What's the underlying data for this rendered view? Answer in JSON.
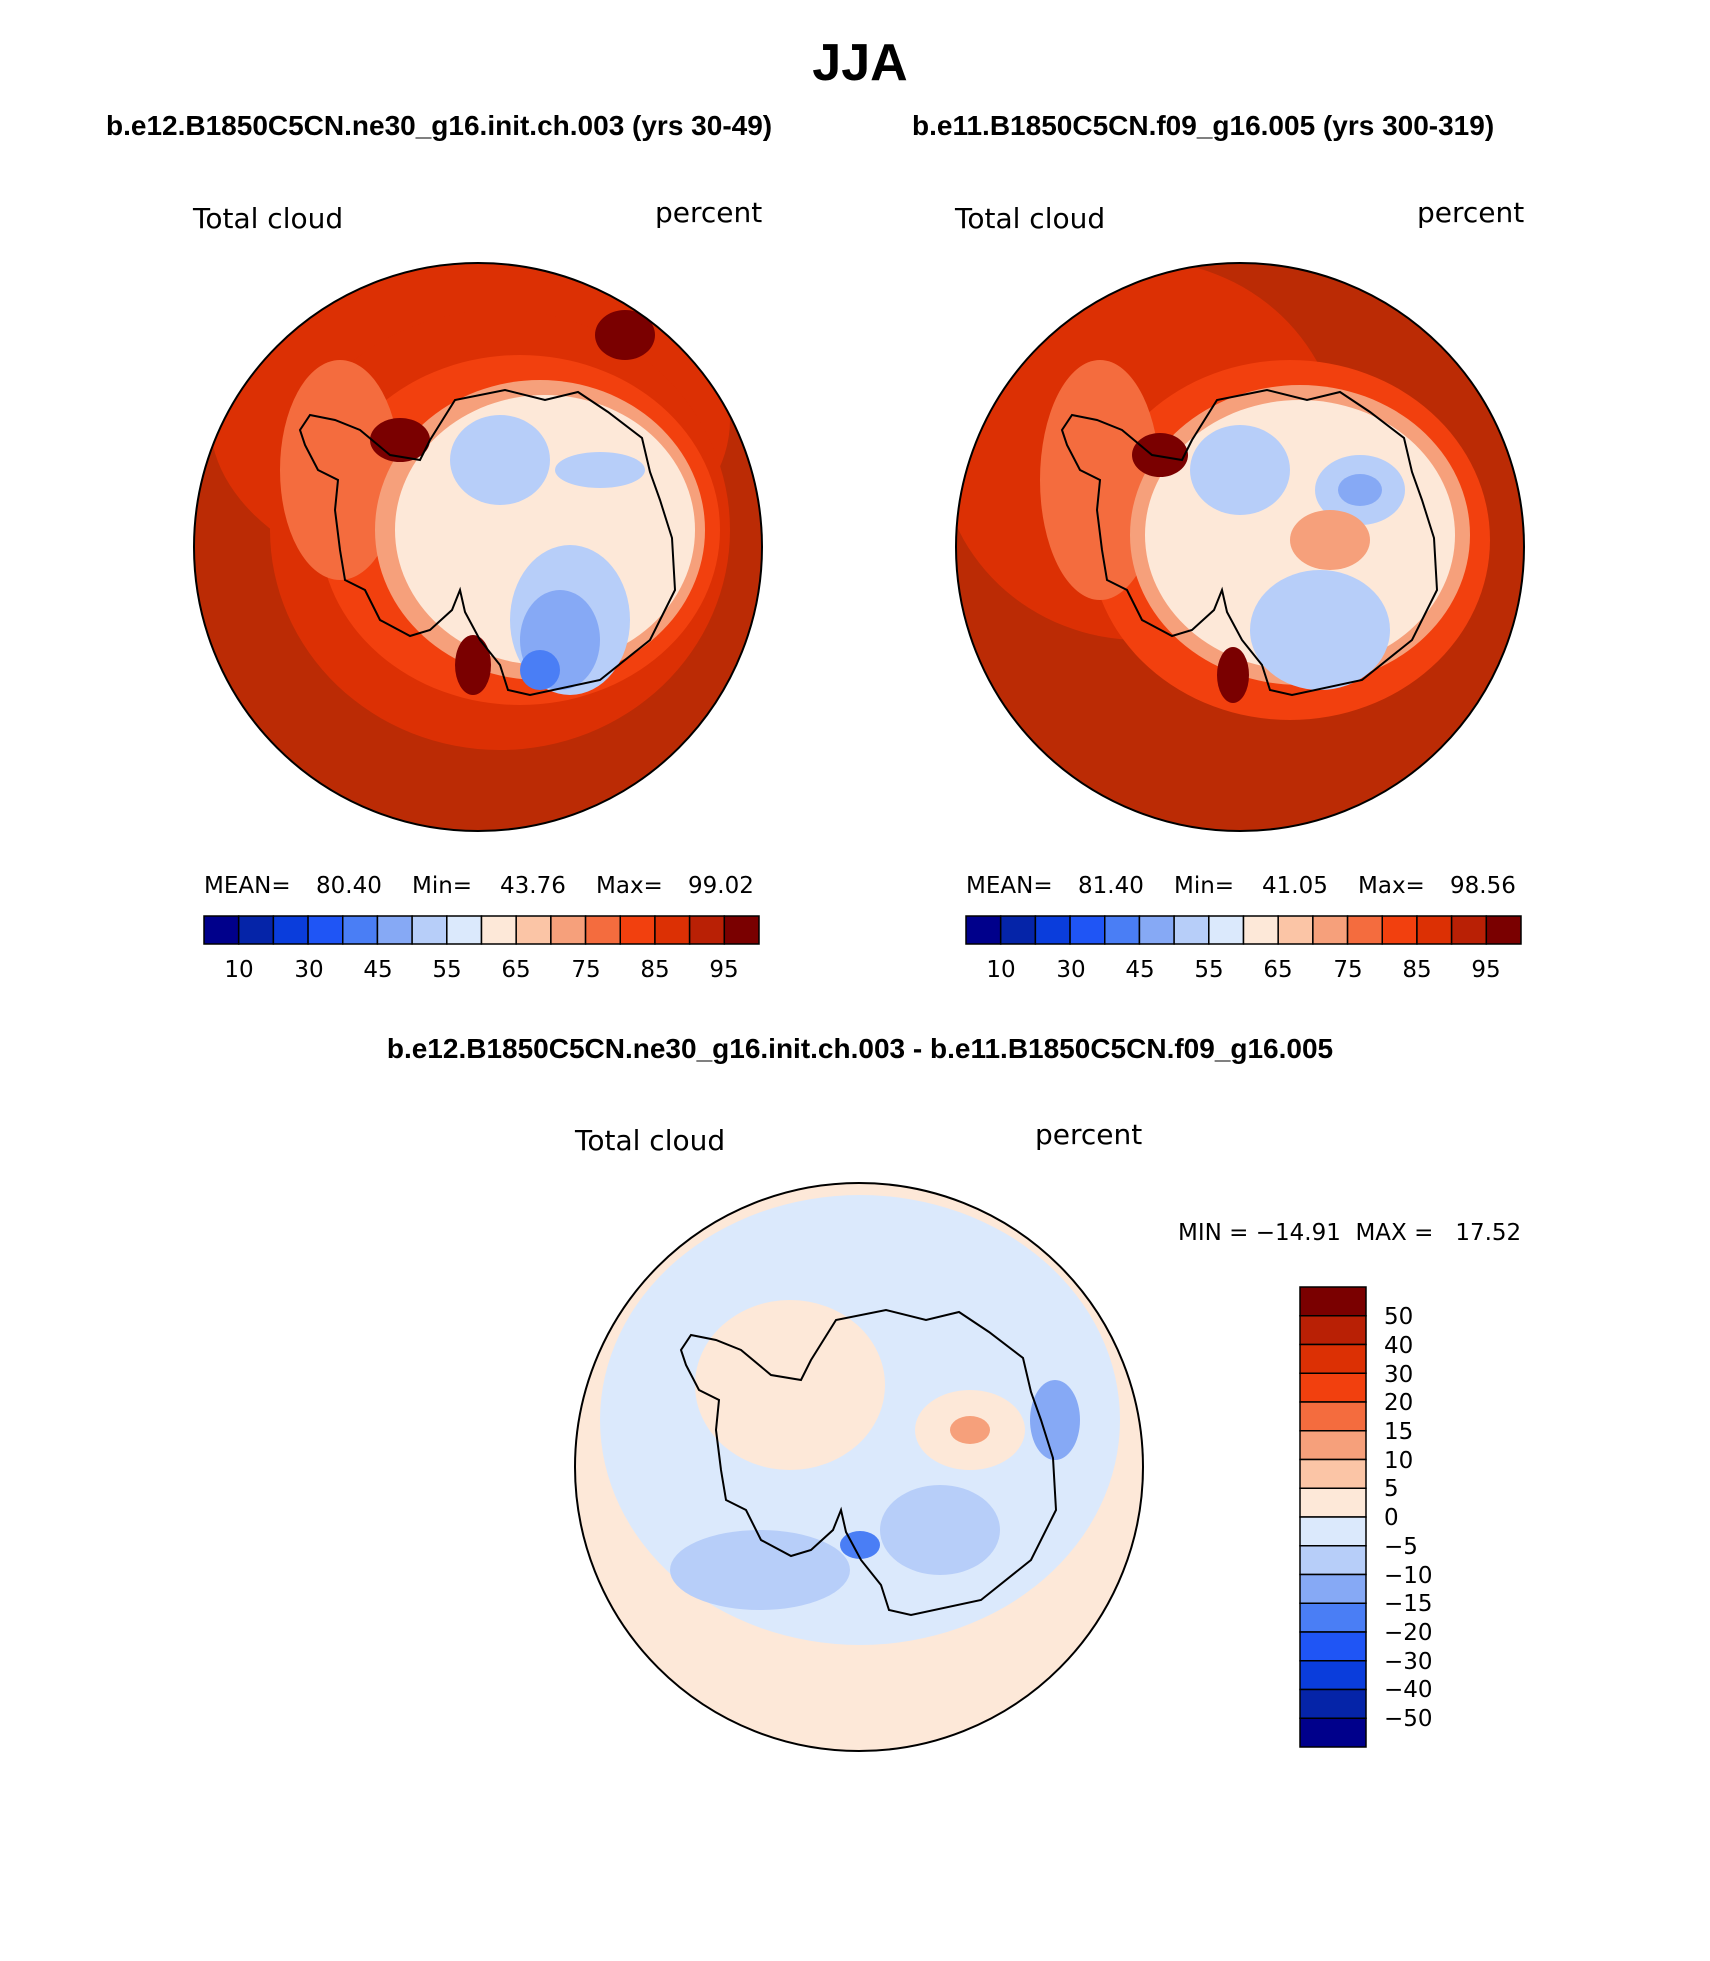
{
  "figure": {
    "title": "JJA",
    "difference_title": "b.e12.B1850C5CN.ne30_g16.init.ch.003 - b.e11.B1850C5CN.f09_g16.005"
  },
  "colors": {
    "ocean_fill_case1": "#bb2b05",
    "ocean_fill_case2": "#bb2b05",
    "diff_fill": "#fde8d8",
    "coastline": "#000000"
  },
  "panels": [
    {
      "case_title": "b.e12.B1850C5CN.ne30_g16.init.ch.003 (yrs 30-49)",
      "variable": "Total cloud",
      "units": "percent",
      "stats": {
        "mean_label": "MEAN=",
        "mean": "80.40",
        "min_label": "Min=",
        "min": "43.76",
        "max_label": "Max=",
        "max": "99.02"
      }
    },
    {
      "case_title": "b.e11.B1850C5CN.f09_g16.005 (yrs 300-319)",
      "variable": "Total cloud",
      "units": "percent",
      "stats": {
        "mean_label": "MEAN=",
        "mean": "81.40",
        "min_label": "Min=",
        "min": "41.05",
        "max_label": "Max=",
        "max": "98.56"
      }
    },
    {
      "variable": "Total cloud",
      "units": "percent",
      "minmax": "MIN = −14.91  MAX =   17.52"
    }
  ],
  "colorbar_abs": {
    "colors": [
      "#00008b",
      "#0524a8",
      "#0a3ddc",
      "#1f55f5",
      "#4a7ef5",
      "#86a9f5",
      "#b7cef9",
      "#dbe9fc",
      "#fde8d8",
      "#fbc5a6",
      "#f6a07b",
      "#f46c3e",
      "#f2400e",
      "#dc3004",
      "#b92005",
      "#7a0000"
    ],
    "tick_labels": [
      "10",
      "30",
      "45",
      "55",
      "65",
      "75",
      "85",
      "95"
    ]
  },
  "colorbar_diff": {
    "colors": [
      "#00008b",
      "#0524a8",
      "#0a3ddc",
      "#1f55f5",
      "#4a7ef5",
      "#86a9f5",
      "#b7cef9",
      "#dbe9fc",
      "#fde8d8",
      "#fbc5a6",
      "#f6a07b",
      "#f46c3e",
      "#f2400e",
      "#dc3004",
      "#b92005",
      "#7a0000"
    ],
    "tick_labels": [
      "50",
      "40",
      "30",
      "20",
      "15",
      "10",
      "5",
      "0",
      "−5",
      "−10",
      "−15",
      "−20",
      "−30",
      "−40",
      "−50"
    ]
  }
}
